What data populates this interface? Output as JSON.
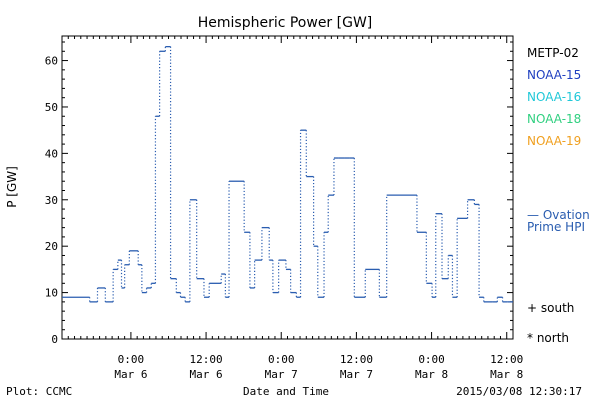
{
  "chart_data": {
    "type": "line",
    "title": "Hemispheric Power [GW]",
    "xlabel": "Date and Time",
    "ylabel": "P [GW]",
    "ylim": [
      0,
      64
    ],
    "yticks": [
      0,
      10,
      20,
      30,
      40,
      50,
      60
    ],
    "xlim": [
      "2015-03-05T13:00",
      "2015-03-08T13:00"
    ],
    "xticks": [
      {
        "x": "2015-03-06T00:00",
        "time": "0:00",
        "date": "Mar 6"
      },
      {
        "x": "2015-03-06T12:00",
        "time": "12:00",
        "date": "Mar 6"
      },
      {
        "x": "2015-03-07T00:00",
        "time": "0:00",
        "date": "Mar 7"
      },
      {
        "x": "2015-03-07T12:00",
        "time": "12:00",
        "date": "Mar 7"
      },
      {
        "x": "2015-03-08T00:00",
        "time": "0:00",
        "date": "Mar 8"
      },
      {
        "x": "2015-03-08T12:00",
        "time": "12:00",
        "date": "Mar 8"
      }
    ],
    "legend": [
      {
        "name": "METP-02",
        "color": "#000000"
      },
      {
        "name": "NOAA-15",
        "color": "#2040c0"
      },
      {
        "name": "NOAA-16",
        "color": "#20c8d8"
      },
      {
        "name": "NOAA-18",
        "color": "#30d080"
      },
      {
        "name": "NOAA-19",
        "color": "#f0a020"
      }
    ],
    "legend_position": "right",
    "series": [
      {
        "name": "Ovation Prime HPI",
        "color": "#2a5db0",
        "style": "step",
        "x": [
          "2015-03-05T13:00",
          "2015-03-05T17:25",
          "2015-03-05T18:40",
          "2015-03-05T19:55",
          "2015-03-05T21:10",
          "2015-03-05T21:55",
          "2015-03-05T22:30",
          "2015-03-05T23:00",
          "2015-03-05T23:45",
          "2015-03-06T01:10",
          "2015-03-06T01:45",
          "2015-03-06T02:30",
          "2015-03-06T03:15",
          "2015-03-06T03:55",
          "2015-03-06T04:35",
          "2015-03-06T05:30",
          "2015-03-06T06:20",
          "2015-03-06T07:15",
          "2015-03-06T07:55",
          "2015-03-06T08:40",
          "2015-03-06T09:25",
          "2015-03-06T10:30",
          "2015-03-06T11:40",
          "2015-03-06T12:30",
          "2015-03-06T14:25",
          "2015-03-06T15:05",
          "2015-03-06T15:40",
          "2015-03-06T18:05",
          "2015-03-06T19:00",
          "2015-03-06T19:45",
          "2015-03-06T20:55",
          "2015-03-06T22:05",
          "2015-03-06T22:40",
          "2015-03-06T23:35",
          "2015-03-07T00:45",
          "2015-03-07T01:30",
          "2015-03-07T02:25",
          "2015-03-07T03:05",
          "2015-03-07T04:00",
          "2015-03-07T05:10",
          "2015-03-07T05:50",
          "2015-03-07T06:50",
          "2015-03-07T07:30",
          "2015-03-07T08:25",
          "2015-03-07T09:05",
          "2015-03-07T10:10",
          "2015-03-07T10:50",
          "2015-03-07T11:40",
          "2015-03-07T13:25",
          "2015-03-07T15:40",
          "2015-03-07T16:50",
          "2015-03-07T21:40",
          "2015-03-07T23:10",
          "2015-03-08T00:05",
          "2015-03-08T00:40",
          "2015-03-08T01:40",
          "2015-03-08T02:40",
          "2015-03-08T03:20",
          "2015-03-08T04:05",
          "2015-03-08T05:45",
          "2015-03-08T06:50",
          "2015-03-08T07:35",
          "2015-03-08T08:20",
          "2015-03-08T09:40",
          "2015-03-08T10:30",
          "2015-03-08T11:20",
          "2015-03-08T12:05",
          "2015-03-08T12:35",
          "2015-03-08T13:00"
        ],
        "values": [
          9,
          8,
          11,
          8,
          15,
          17,
          11,
          16,
          19,
          16,
          10,
          11,
          12,
          48,
          62,
          63,
          13,
          10,
          9,
          8,
          30,
          13,
          9,
          12,
          14,
          9,
          34,
          23,
          11,
          17,
          24,
          17,
          10,
          17,
          15,
          10,
          9,
          45,
          35,
          20,
          9,
          23,
          31,
          39,
          39,
          39,
          39,
          9,
          15,
          9,
          31,
          23,
          12,
          9,
          27,
          13,
          18,
          9,
          26,
          30,
          29,
          9,
          8,
          8,
          9,
          8,
          8,
          8,
          8
        ]
      }
    ],
    "annotations": [
      {
        "text": "— Ovation",
        "color": "#2a5db0"
      },
      {
        "text": "Prime HPI",
        "color": "#2a5db0"
      },
      {
        "text": "+ south",
        "color": "#000000"
      },
      {
        "text": "* north",
        "color": "#000000"
      }
    ],
    "grid": false
  },
  "footer": {
    "plot_credit": "Plot: CCMC",
    "timestamp": "2015/03/08 12:30:17"
  }
}
